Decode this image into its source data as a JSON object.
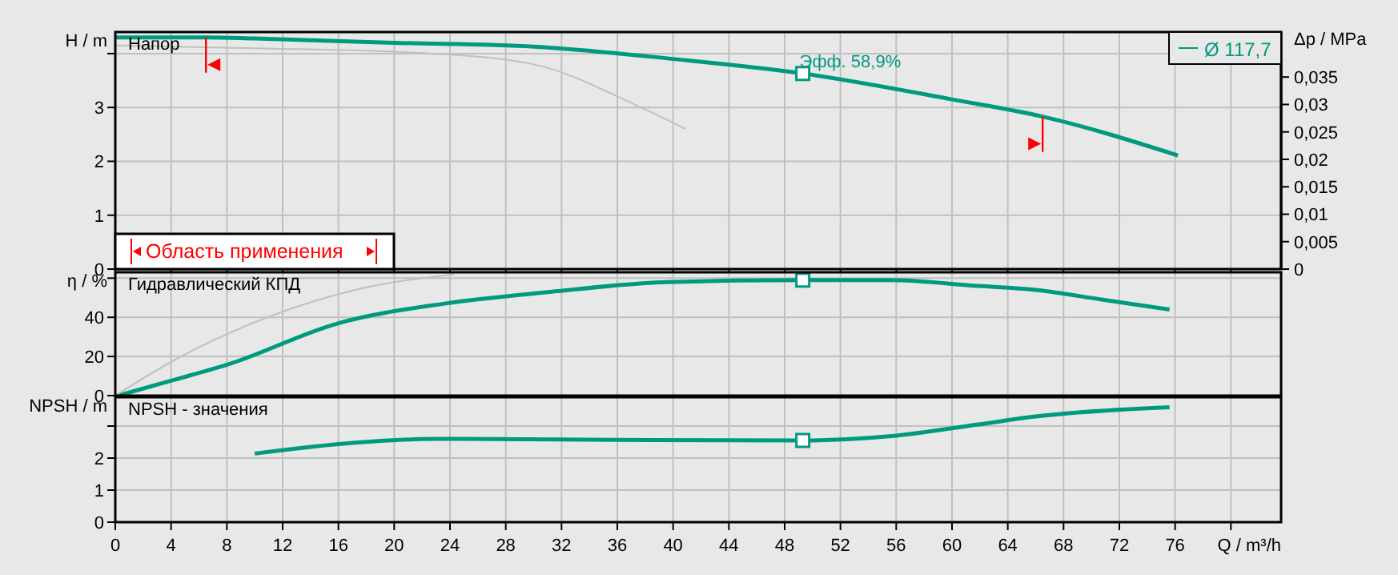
{
  "chart_data": [
    {
      "type": "line",
      "xlim": [
        0,
        83.6
      ],
      "xticks": [
        0,
        4,
        8,
        12,
        16,
        20,
        24,
        28,
        32,
        36,
        40,
        44,
        48,
        52,
        56,
        60,
        64,
        68,
        72,
        76,
        80
      ],
      "ylim": [
        0,
        4.4
      ],
      "yticks": [
        0,
        1,
        2,
        3,
        {
          "value": 4,
          "label": null
        }
      ],
      "ylabel": "H / m",
      "y2label": "Δp / MPa",
      "y2lim": [
        0,
        0.0432
      ],
      "y2ticks": [
        0,
        {
          "value": 0.005,
          "label": "0,005"
        },
        {
          "value": 0.01,
          "label": "0,01"
        },
        {
          "value": 0.015,
          "label": "0,015"
        },
        {
          "value": 0.02,
          "label": "0,02"
        },
        {
          "value": 0.025,
          "label": "0,025"
        },
        {
          "value": 0.03,
          "label": "0,03"
        },
        {
          "value": 0.035,
          "label": "0,035"
        }
      ],
      "grid": true,
      "legend": "top right",
      "tick_labels": "y",
      "series": [
        {
          "name": "Ø 117,7",
          "color": "#009a80",
          "x": [
            0,
            6.5,
            10,
            20,
            30,
            40,
            49.3,
            60,
            66.5,
            76.2
          ],
          "values": [
            4.3,
            4.3,
            4.28,
            4.2,
            4.13,
            3.9,
            3.63,
            3.15,
            2.83,
            2.11
          ]
        },
        {
          "color": "#c0c0c0",
          "x": [
            0,
            10,
            22.7,
            30,
            37.7,
            40.9
          ],
          "values": [
            4.15,
            4.1,
            4.0,
            3.8,
            3.0,
            2.6
          ]
        },
        {
          "type": "scatter",
          "marker": "square",
          "color": "#009a80",
          "x": [
            49.3
          ],
          "values": [
            3.63
          ]
        }
      ],
      "annotations": [
        "Напор",
        {
          "text": "Эфф.  58,9%",
          "x": 49.3,
          "y": 3.63
        },
        "Область применения"
      ],
      "ref_lines": [
        {
          "axis": "x",
          "value": 6.5,
          "color": "#ff0000"
        },
        {
          "axis": "x",
          "value": 66.5,
          "color": "#ff0000"
        }
      ]
    },
    {
      "type": "line",
      "xlim": [
        0,
        83.6
      ],
      "xticks": [
        0,
        4,
        8,
        12,
        16,
        20,
        24,
        28,
        32,
        36,
        40,
        44,
        48,
        52,
        56,
        60,
        64,
        68,
        72,
        76,
        80
      ],
      "ylim": [
        0,
        63
      ],
      "yticks": [
        0,
        20,
        40,
        {
          "value": 60,
          "label": null
        }
      ],
      "ylabel": "η / %",
      "grid": true,
      "tick_labels": "y",
      "series": [
        {
          "color": "#009a80",
          "x": [
            0.2,
            4.2,
            8.1,
            16,
            23.6,
            31.2,
            39.6,
            49.3,
            55.5,
            61.9,
            66,
            70.8,
            75.6
          ],
          "values": [
            0,
            8,
            16,
            37,
            47,
            53,
            58,
            59,
            59,
            56,
            54,
            49,
            44
          ]
        },
        {
          "color": "#c0c0c0",
          "x": [
            0,
            4.2,
            10.9,
            17.2,
            24.3
          ],
          "values": [
            0,
            18,
            40,
            54,
            62
          ]
        },
        {
          "type": "scatter",
          "marker": "square",
          "color": "#009a80",
          "x": [
            49.3
          ],
          "values": [
            59
          ]
        }
      ],
      "annotations": [
        "Гидравлический КПД"
      ]
    },
    {
      "type": "line",
      "xlim": [
        0,
        83.6
      ],
      "xticks": [
        0,
        4,
        8,
        12,
        16,
        20,
        24,
        28,
        32,
        36,
        40,
        44,
        48,
        52,
        56,
        60,
        64,
        68,
        72,
        76,
        {
          "value": 80,
          "label": null
        }
      ],
      "ylim": [
        0,
        3.9
      ],
      "yticks": [
        0,
        1,
        2,
        {
          "value": 3,
          "label": null
        }
      ],
      "ylabel": "NPSH / m",
      "xlabel": "Q / m³/h",
      "grid": true,
      "series": [
        {
          "color": "#009a80",
          "x": [
            10,
            17.2,
            23,
            35.7,
            49.3,
            55.5,
            61.9,
            66,
            75.6
          ],
          "values": [
            2.14,
            2.48,
            2.6,
            2.57,
            2.55,
            2.68,
            3.05,
            3.3,
            3.59
          ]
        },
        {
          "type": "scatter",
          "marker": "square",
          "color": "#009a80",
          "x": [
            49.3
          ],
          "values": [
            2.55
          ]
        }
      ],
      "annotations": [
        "NPSH - значения"
      ]
    }
  ]
}
